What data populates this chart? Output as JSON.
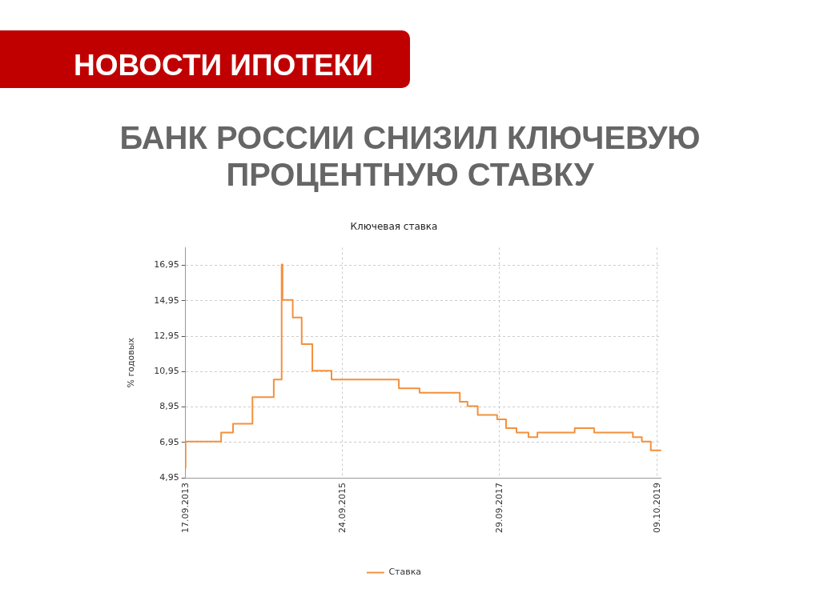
{
  "chart_data": {
    "type": "step",
    "annotations": [
      "НОВОСТИ ИПОТЕКИ"
    ],
    "title": "БАНК РОССИИ СНИЗИЛ КЛЮЧЕВУЮ ПРОЦЕНТНУЮ СТАВКУ",
    "subtitle": "Ключевая ставка",
    "ylabel": "% годовых",
    "x": [
      "2013-09-17",
      "2014-03-03",
      "2014-04-28",
      "2014-07-28",
      "2014-11-05",
      "2014-12-12",
      "2014-12-16",
      "2015-02-02",
      "2015-03-16",
      "2015-05-05",
      "2015-08-03",
      "2016-06-14",
      "2016-09-19",
      "2017-03-27",
      "2017-05-02",
      "2017-06-19",
      "2017-09-18",
      "2017-10-30",
      "2017-12-18",
      "2018-02-12",
      "2018-03-26",
      "2018-09-17",
      "2018-12-17",
      "2019-06-17",
      "2019-07-29",
      "2019-09-09",
      "2019-10-28"
    ],
    "series": [
      {
        "name": "Ставка",
        "color": "#f4903c",
        "values": [
          5.5,
          7,
          7.5,
          8,
          9.5,
          10.5,
          17,
          15,
          14,
          12.5,
          11,
          10.5,
          10,
          9.75,
          9.25,
          9,
          8.5,
          8.25,
          7.75,
          7.5,
          7.25,
          7.5,
          7.75,
          7.5,
          7.25,
          7,
          6.5
        ]
      }
    ],
    "xlim": [
      "2013-09-17",
      "2019-10-28"
    ],
    "xticks": [
      {
        "value": "2013-09-17",
        "label": "17.09.2013"
      },
      {
        "value": "2015-09-24",
        "label": "24.09.2015"
      },
      {
        "value": "2017-09-29",
        "label": "29.09.2017"
      },
      {
        "value": "2019-10-09",
        "label": "09.10.2019"
      }
    ],
    "ylim": [
      4.95,
      17.95
    ],
    "yticks": [
      {
        "value": 4.95,
        "label": "4,95"
      },
      {
        "value": 6.95,
        "label": "6,95"
      },
      {
        "value": 8.95,
        "label": "8,95"
      },
      {
        "value": 10.95,
        "label": "10,95"
      },
      {
        "value": 12.95,
        "label": "12,95"
      },
      {
        "value": 14.95,
        "label": "14,95"
      },
      {
        "value": 16.95,
        "label": "16,95"
      }
    ],
    "grid": true,
    "legend": "bottom",
    "marker": "none",
    "line_style": "solid"
  }
}
